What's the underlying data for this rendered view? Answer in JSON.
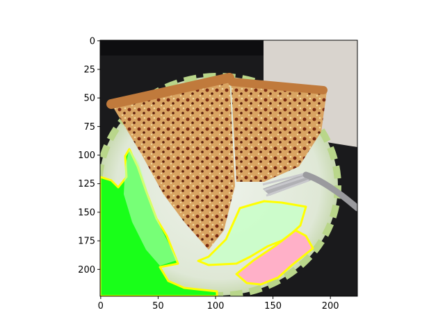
{
  "chart_data": {
    "type": "image",
    "title": "",
    "xlabel": "",
    "ylabel": "",
    "image_size": [
      224,
      224
    ],
    "xlim": [
      0,
      224
    ],
    "ylim": [
      224,
      0
    ],
    "x_ticks": [
      0,
      50,
      100,
      150,
      200
    ],
    "y_ticks": [
      0,
      25,
      50,
      75,
      100,
      125,
      150,
      175,
      200
    ],
    "grid": false,
    "legend": "none",
    "content": "photo of pizza slices on a patterned paper plate with a fork, with segmentation mask overlays",
    "overlays": [
      {
        "color": "#19ff19",
        "region": "plate-left-and-table-bottom-left",
        "outline": "#ffff00"
      },
      {
        "color": "#b6ffb6",
        "region": "plate-center-bottom",
        "outline": "#ffff00"
      },
      {
        "color": "#ffb0c8",
        "region": "plate-right-bottom",
        "outline": "#ffff00"
      }
    ],
    "colors": {
      "background_table": "#1a1a1c",
      "napkin": "#d9d4ce",
      "plate": "#e6ede0",
      "plate_rim_pattern": "#bcd98a",
      "pizza_crust": "#c98a4a",
      "pizza_cheese": "#e0b070",
      "pizza_topping": "#7a2a12",
      "fork": "#a8a8ac"
    }
  }
}
